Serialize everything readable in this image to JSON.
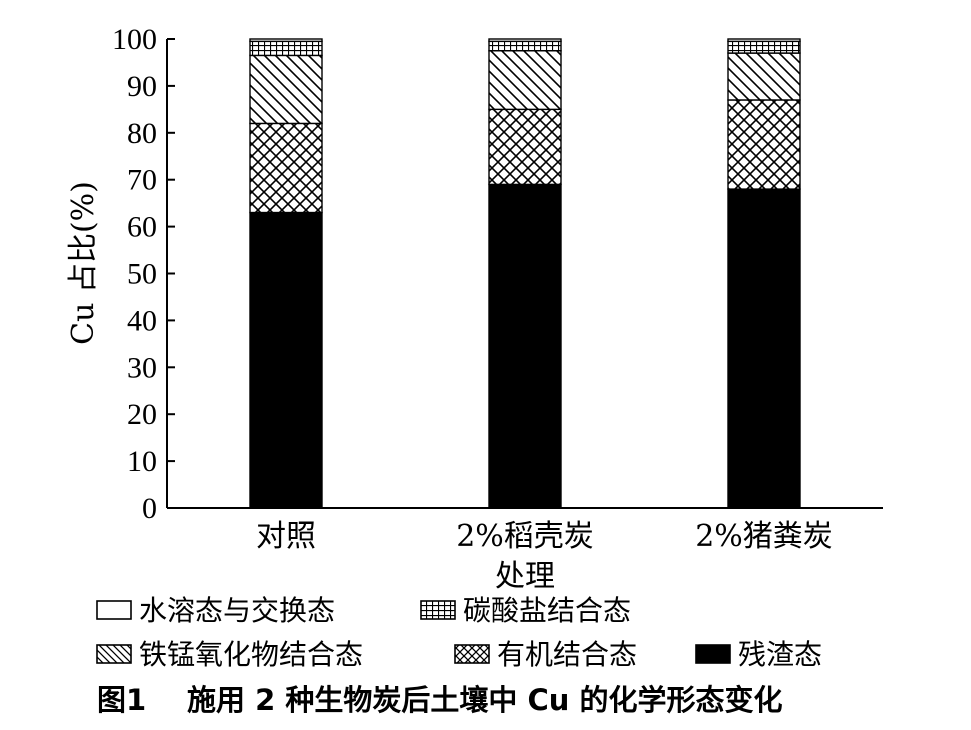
{
  "chart_data": {
    "type": "bar",
    "stacked": true,
    "categories": [
      "对照",
      "2%稻壳炭",
      "2%猪粪炭"
    ],
    "series": [
      {
        "name": "残渣态",
        "values": [
          63,
          69,
          68
        ],
        "pattern": "solid"
      },
      {
        "name": "有机结合态",
        "values": [
          19,
          16,
          19
        ],
        "pattern": "crosshatch"
      },
      {
        "name": "铁锰氧化物结合态",
        "values": [
          14.5,
          12.5,
          10
        ],
        "pattern": "diagonal"
      },
      {
        "name": "碳酸盐结合态",
        "values": [
          3,
          2,
          2.5
        ],
        "pattern": "grid"
      },
      {
        "name": "水溶态与交换态",
        "values": [
          0.5,
          0.5,
          0.5
        ],
        "pattern": "empty"
      }
    ],
    "xlabel": "处理",
    "ylabel": "Cu 占比(%)",
    "ylim": [
      0,
      100
    ],
    "yticks": [
      0,
      10,
      20,
      30,
      40,
      50,
      60,
      70,
      80,
      90,
      100
    ],
    "legend_placement": "bottom",
    "legend_order": [
      "水溶态与交换态",
      "碳酸盐结合态",
      "铁锰氧化物结合态",
      "有机结合态",
      "残渣态"
    ],
    "grid": false
  },
  "caption": {
    "label": "图1",
    "text": "施用 2 种生物炭后土壤中 Cu 的化学形态变化"
  }
}
